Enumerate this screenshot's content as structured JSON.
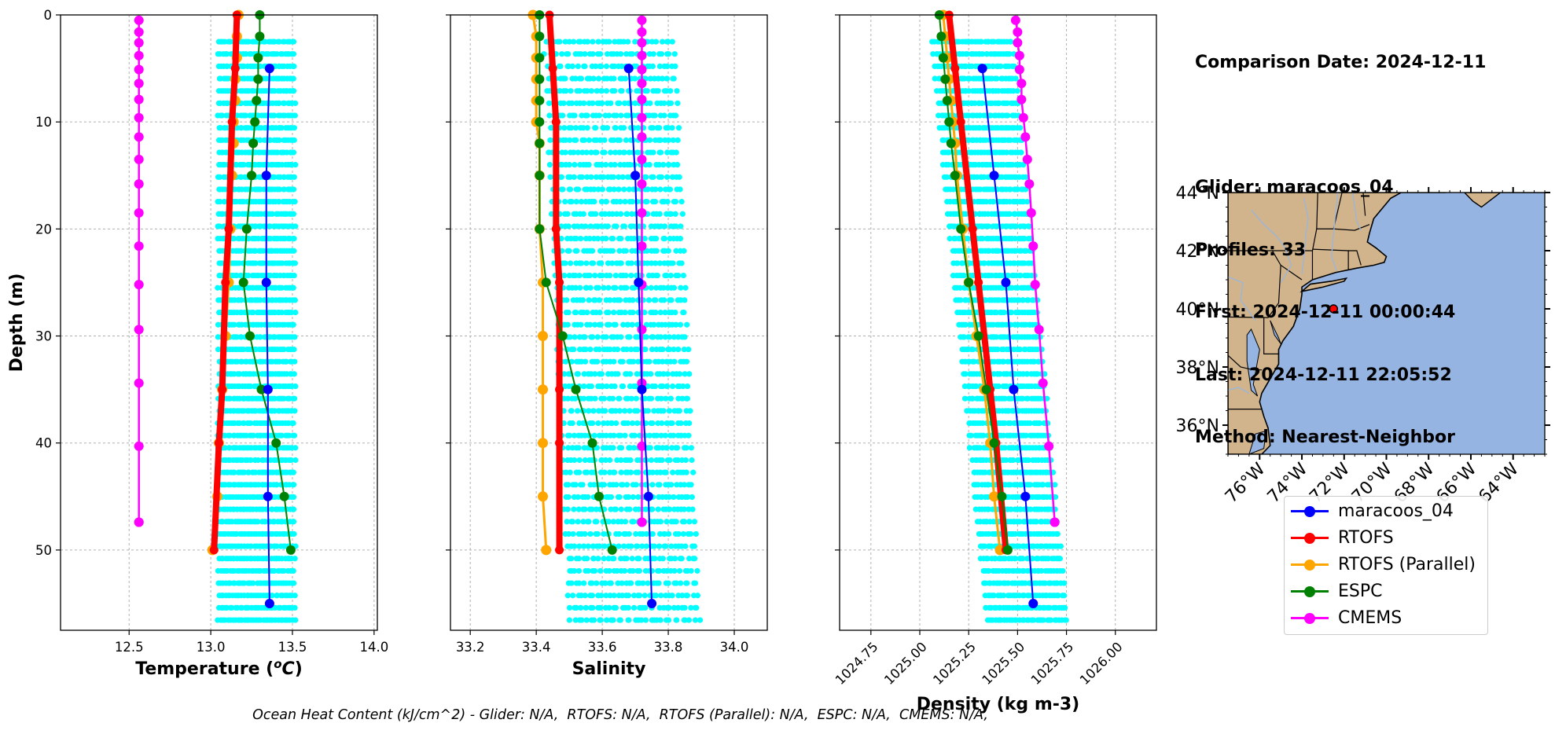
{
  "info_lines": [
    "Comparison Date: 2024-12-11",
    "",
    "Glider: maracoos_04",
    "Profiles: 33",
    "First: 2024-12-11 00:00:44",
    "Last: 2024-12-11 22:05:52",
    "Method: Nearest-Neighbor"
  ],
  "footer": "Ocean Heat Content (kJ/cm^2) - Glider: N/A,  RTOFS: N/A,  RTOFS (Parallel): N/A,  ESPC: N/A,  CMEMS: N/A,",
  "legend": [
    {
      "label": "maracoos_04",
      "color": "#0000ff"
    },
    {
      "label": "RTOFS",
      "color": "#ff0000"
    },
    {
      "label": "RTOFS (Parallel)",
      "color": "#ffa500"
    },
    {
      "label": "ESPC",
      "color": "#008000"
    },
    {
      "label": "CMEMS",
      "color": "#ff00ff"
    }
  ],
  "colors": {
    "glider_scatter": "#00ffff",
    "land": "#d2b48c",
    "ocean": "#95b4e2",
    "rivers": "#9bb6d9",
    "grid": "#b0b0b0"
  },
  "chart_data": [
    {
      "type": "line",
      "panel": "temperature",
      "xlabel": "Temperature (°C)",
      "ylabel": "Depth (m)",
      "xlim": [
        12.08,
        14.02
      ],
      "ylim": [
        57.5,
        0
      ],
      "xticks": [
        12.5,
        13.0,
        13.5,
        14.0
      ],
      "yticks": [
        0,
        10,
        20,
        30,
        40,
        50
      ],
      "grid": true,
      "scatter_range": {
        "min": 13.04,
        "max": 13.52,
        "depth_min": 2.5,
        "depth_max": 57.5
      },
      "series": [
        {
          "name": "maracoos_04",
          "x": [
            13.36,
            13.34,
            13.34,
            13.35,
            13.35,
            13.36
          ],
          "y": [
            5,
            15,
            25,
            35,
            45,
            55
          ]
        },
        {
          "name": "RTOFS",
          "x": [
            13.16,
            13.15,
            13.13,
            13.11,
            13.09,
            13.07,
            13.05,
            13.02
          ],
          "y": [
            0,
            5,
            10,
            20,
            25,
            35,
            40,
            50
          ]
        },
        {
          "name": "RTOFS (Parallel)",
          "x": [
            13.17,
            13.16,
            13.16,
            13.15,
            13.15,
            13.14,
            13.14,
            13.13,
            13.12,
            13.11,
            13.09,
            13.07,
            13.05,
            13.04,
            13.01
          ],
          "y": [
            0,
            2,
            4,
            6,
            8,
            10,
            12,
            15,
            20,
            25,
            30,
            35,
            40,
            45,
            50
          ]
        },
        {
          "name": "ESPC",
          "x": [
            13.3,
            13.3,
            13.29,
            13.29,
            13.28,
            13.27,
            13.26,
            13.25,
            13.22,
            13.2,
            13.24,
            13.31,
            13.4,
            13.45,
            13.49
          ],
          "y": [
            0,
            2,
            4,
            6,
            8,
            10,
            12,
            15,
            20,
            25,
            30,
            35,
            40,
            45,
            50
          ]
        },
        {
          "name": "CMEMS",
          "x": [
            12.56,
            12.56,
            12.56,
            12.56,
            12.56,
            12.56,
            12.56,
            12.56,
            12.56,
            12.56,
            12.56,
            12.56,
            12.56,
            12.56,
            12.56,
            12.56,
            12.56,
            12.56,
            12.56
          ],
          "y": [
            0.5,
            1.6,
            2.6,
            3.8,
            5.1,
            6.4,
            7.9,
            9.6,
            11.4,
            13.5,
            15.8,
            18.5,
            21.6,
            25.2,
            29.4,
            34.4,
            40.3,
            47.4,
            47.4
          ]
        }
      ]
    },
    {
      "type": "line",
      "panel": "salinity",
      "xlabel": "Salinity",
      "ylabel": "",
      "xlim": [
        33.14,
        34.1
      ],
      "ylim": [
        57.5,
        0
      ],
      "xticks": [
        33.2,
        33.4,
        33.6,
        33.8,
        34.0
      ],
      "yticks": [
        0,
        10,
        20,
        30,
        40,
        50
      ],
      "grid": true,
      "scatter_range": {
        "min": 33.46,
        "max": 33.86,
        "depth_min": 2.5,
        "depth_max": 57.5
      },
      "series": [
        {
          "name": "maracoos_04",
          "x": [
            33.68,
            33.7,
            33.71,
            33.72,
            33.74,
            33.75
          ],
          "y": [
            5,
            15,
            25,
            35,
            45,
            55
          ]
        },
        {
          "name": "RTOFS",
          "x": [
            33.44,
            33.45,
            33.46,
            33.46,
            33.47,
            33.47,
            33.47,
            33.47
          ],
          "y": [
            0,
            5,
            10,
            20,
            25,
            35,
            40,
            50
          ]
        },
        {
          "name": "RTOFS (Parallel)",
          "x": [
            33.39,
            33.4,
            33.4,
            33.4,
            33.4,
            33.4,
            33.41,
            33.41,
            33.41,
            33.42,
            33.42,
            33.42,
            33.42,
            33.42,
            33.43
          ],
          "y": [
            0,
            2,
            4,
            6,
            8,
            10,
            12,
            15,
            20,
            25,
            30,
            35,
            40,
            45,
            50
          ]
        },
        {
          "name": "ESPC",
          "x": [
            33.41,
            33.41,
            33.41,
            33.41,
            33.41,
            33.41,
            33.41,
            33.41,
            33.41,
            33.43,
            33.48,
            33.52,
            33.57,
            33.59,
            33.63
          ],
          "y": [
            0,
            2,
            4,
            6,
            8,
            10,
            12,
            15,
            20,
            25,
            30,
            35,
            40,
            45,
            50
          ]
        },
        {
          "name": "CMEMS",
          "x": [
            33.72,
            33.72,
            33.72,
            33.72,
            33.72,
            33.72,
            33.72,
            33.72,
            33.72,
            33.72,
            33.72,
            33.72,
            33.72,
            33.72,
            33.72,
            33.72,
            33.72,
            33.72,
            33.72
          ],
          "y": [
            0.5,
            1.6,
            2.6,
            3.8,
            5.1,
            6.4,
            7.9,
            9.6,
            11.4,
            13.5,
            15.8,
            18.5,
            21.6,
            25.2,
            29.4,
            34.4,
            40.3,
            47.4,
            47.4
          ]
        }
      ]
    },
    {
      "type": "line",
      "panel": "density",
      "xlabel": "Density (kg m-3)",
      "ylabel": "",
      "xlim": [
        1024.59,
        1026.21
      ],
      "ylim": [
        57.5,
        0
      ],
      "xticks": [
        1024.75,
        1025.0,
        1025.25,
        1025.5,
        1025.75,
        1026.0
      ],
      "yticks": [
        0,
        10,
        20,
        30,
        40,
        50
      ],
      "grid": true,
      "scatter_range": {
        "min": 1025.2,
        "max": 1025.62,
        "depth_min": 2.5,
        "depth_max": 57.5
      },
      "series": [
        {
          "name": "maracoos_04",
          "x": [
            1025.32,
            1025.38,
            1025.44,
            1025.48,
            1025.54,
            1025.58
          ],
          "y": [
            5,
            15,
            25,
            35,
            45,
            55
          ]
        },
        {
          "name": "RTOFS",
          "x": [
            1025.15,
            1025.18,
            1025.21,
            1025.27,
            1025.3,
            1025.36,
            1025.39,
            1025.44
          ],
          "y": [
            0,
            5,
            10,
            20,
            25,
            35,
            40,
            50
          ]
        },
        {
          "name": "RTOFS (Parallel)",
          "x": [
            1025.12,
            1025.13,
            1025.14,
            1025.15,
            1025.16,
            1025.17,
            1025.18,
            1025.19,
            1025.22,
            1025.25,
            1025.29,
            1025.33,
            1025.36,
            1025.38,
            1025.41
          ],
          "y": [
            0,
            2,
            4,
            6,
            8,
            10,
            12,
            15,
            20,
            25,
            30,
            35,
            40,
            45,
            50
          ]
        },
        {
          "name": "ESPC",
          "x": [
            1025.1,
            1025.11,
            1025.12,
            1025.13,
            1025.14,
            1025.15,
            1025.16,
            1025.18,
            1025.21,
            1025.25,
            1025.3,
            1025.34,
            1025.38,
            1025.42,
            1025.45
          ],
          "y": [
            0,
            2,
            4,
            6,
            8,
            10,
            12,
            15,
            20,
            25,
            30,
            35,
            40,
            45,
            50
          ]
        },
        {
          "name": "CMEMS",
          "x": [
            1025.49,
            1025.5,
            1025.5,
            1025.51,
            1025.51,
            1025.52,
            1025.52,
            1025.53,
            1025.54,
            1025.55,
            1025.56,
            1025.57,
            1025.58,
            1025.59,
            1025.61,
            1025.63,
            1025.66,
            1025.69,
            1025.69
          ],
          "y": [
            0.5,
            1.6,
            2.6,
            3.8,
            5.1,
            6.4,
            7.9,
            9.6,
            11.4,
            13.5,
            15.8,
            18.5,
            21.6,
            25.2,
            29.4,
            34.4,
            40.3,
            47.4,
            47.4
          ]
        }
      ]
    }
  ],
  "map": {
    "lon_range": [
      -77.5,
      -62.5
    ],
    "lat_range": [
      35,
      44
    ],
    "lat_labels": [
      "44°N",
      "42°N",
      "40°N",
      "38°N",
      "36°N"
    ],
    "lat_values": [
      44,
      42,
      40,
      38,
      36
    ],
    "lon_labels": [
      "76°W",
      "74°W",
      "72°W",
      "70°W",
      "68°W",
      "66°W",
      "64°W"
    ],
    "lon_values": [
      -76,
      -74,
      -72,
      -70,
      -68,
      -66,
      -64
    ],
    "glider_position": {
      "lon": -72.5,
      "lat": 40.0
    }
  }
}
